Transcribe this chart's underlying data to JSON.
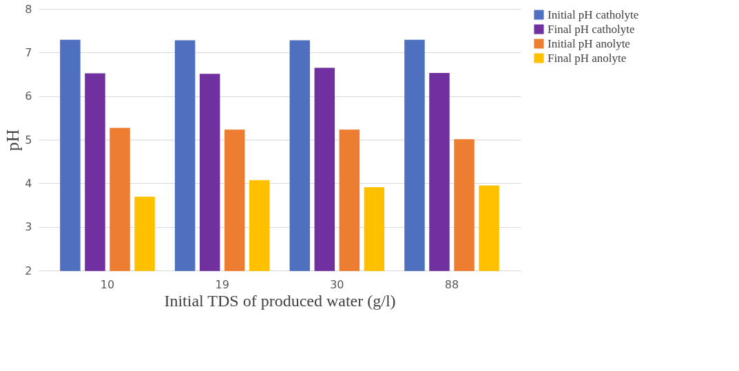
{
  "chart_data": {
    "type": "bar",
    "xlabel": "Initial TDS of produced water (g/l)",
    "ylabel": "pH",
    "categories": [
      "10",
      "19",
      "30",
      "88"
    ],
    "series": [
      {
        "name": "Initial pH catholyte",
        "color": "#4f6fbf",
        "values": [
          7.28,
          7.27,
          7.27,
          7.28
        ]
      },
      {
        "name": "Final pH catholyte",
        "color": "#7030a0",
        "values": [
          6.51,
          6.5,
          6.64,
          6.52
        ]
      },
      {
        "name": "Initial pH anolyte",
        "color": "#ed7d31",
        "values": [
          5.26,
          5.22,
          5.22,
          5.0
        ]
      },
      {
        "name": "Final pH anolyte",
        "color": "#ffc000",
        "values": [
          3.68,
          4.06,
          3.9,
          3.94
        ]
      }
    ],
    "ylim": [
      2,
      8
    ],
    "yticks": [
      2,
      3,
      4,
      5,
      6,
      7,
      8
    ],
    "grid": "y",
    "legend": "right"
  }
}
